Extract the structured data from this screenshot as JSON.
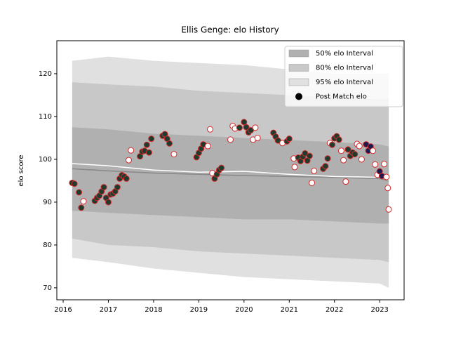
{
  "chart_data": {
    "type": "scatter",
    "title": "Ellis Genge: elo History",
    "y_label": "elo score",
    "xlim": [
      2015.86,
      2023.54
    ],
    "ylim": [
      67.2,
      127.7
    ],
    "xticks": [
      2016,
      2017,
      2018,
      2019,
      2020,
      2021,
      2022,
      2023
    ],
    "yticks": [
      70,
      80,
      90,
      100,
      110,
      120
    ],
    "legend": "upper right",
    "x": [
      2016.2,
      2017,
      2018,
      2019,
      2020,
      2021,
      2022,
      2023,
      2023.2
    ],
    "bands": [
      {
        "name": "50% elo Interval",
        "color": "#b0b0b0",
        "upper": [
          107.5,
          107,
          106,
          105.5,
          105,
          104.5,
          104,
          103.5,
          103
        ],
        "lower": [
          88,
          87.5,
          87,
          86.5,
          86,
          86,
          85.5,
          85,
          85
        ]
      },
      {
        "name": "80% elo Interval",
        "color": "#c8c8c8",
        "upper": [
          118,
          117.5,
          117,
          116,
          115.5,
          115,
          114.5,
          114,
          114
        ],
        "lower": [
          81.5,
          80,
          79.5,
          78.5,
          78,
          77.5,
          77,
          76.5,
          76
        ]
      },
      {
        "name": "95% elo Interval",
        "color": "#e0e0e0",
        "upper": [
          123,
          124,
          123,
          122.5,
          122,
          121,
          120,
          120,
          120
        ],
        "lower": [
          77,
          76,
          74.5,
          73.5,
          72.5,
          72,
          71.5,
          71,
          70
        ]
      }
    ],
    "lines": [
      {
        "color": "#888888",
        "values": [
          97.8,
          97.3,
          96.8,
          96.5,
          96.2,
          96,
          95.8,
          95.5,
          95
        ]
      },
      {
        "color": "#ffffff",
        "values": [
          99,
          98.5,
          97.5,
          97,
          97.2,
          96.5,
          96,
          95.8,
          95.2
        ]
      }
    ],
    "points": {
      "name": "Post Match elo",
      "color": "#000000",
      "edge": "#d62728",
      "x": [
        2016.2,
        2016.25,
        2016.35,
        2016.4,
        2016.45,
        2016.7,
        2016.75,
        2016.8,
        2016.85,
        2016.9,
        2016.95,
        2017.0,
        2017.05,
        2017.1,
        2017.15,
        2017.2,
        2017.25,
        2017.3,
        2017.35,
        2017.4,
        2017.45,
        2017.5,
        2017.7,
        2017.75,
        2017.8,
        2017.85,
        2017.9,
        2017.95,
        2018.2,
        2018.25,
        2018.3,
        2018.35,
        2018.45,
        2018.95,
        2019.0,
        2019.05,
        2019.1,
        2019.2,
        2019.25,
        2019.3,
        2019.35,
        2019.4,
        2019.45,
        2019.5,
        2019.7,
        2019.75,
        2019.8,
        2019.9,
        2020.0,
        2020.05,
        2020.1,
        2020.15,
        2020.2,
        2020.25,
        2020.3,
        2020.65,
        2020.7,
        2020.75,
        2020.85,
        2020.95,
        2021.0,
        2021.1,
        2021.12,
        2021.2,
        2021.25,
        2021.3,
        2021.35,
        2021.4,
        2021.45,
        2021.5,
        2021.55,
        2021.75,
        2021.8,
        2021.85,
        2021.9,
        2021.95,
        2022.0,
        2022.05,
        2022.1,
        2022.15,
        2022.2,
        2022.25,
        2022.3,
        2022.35,
        2022.4,
        2022.45,
        2022.5,
        2022.55,
        2022.6,
        2022.7,
        2022.75,
        2022.8,
        2022.85,
        2022.9,
        2022.95,
        2023.0,
        2023.05,
        2023.1,
        2023.15,
        2023.18,
        2023.2
      ],
      "values": [
        94.5,
        94.3,
        92.3,
        88.7,
        90.2,
        90.3,
        91,
        91.5,
        92.5,
        93.5,
        91,
        90,
        91.8,
        92,
        92.5,
        93.5,
        95.5,
        96.3,
        96,
        95.5,
        99.8,
        102.1,
        100.7,
        101.8,
        102,
        103.4,
        101.6,
        104.8,
        105.5,
        105.9,
        104.8,
        103.7,
        101.2,
        100.5,
        101.5,
        102.5,
        103.5,
        103.1,
        107,
        96.8,
        95.5,
        96.5,
        97.5,
        98,
        104.6,
        107.8,
        107.2,
        107.4,
        108.7,
        107.5,
        106.3,
        106.8,
        104.6,
        107.4,
        105,
        106.2,
        105.3,
        104.4,
        103.8,
        104.2,
        104.8,
        100.2,
        98.2,
        100.4,
        99.6,
        100.6,
        101.4,
        99.7,
        100.8,
        94.5,
        97.3,
        97.8,
        98.4,
        100.2,
        103.8,
        103.4,
        104.9,
        105.4,
        104.6,
        102,
        99.8,
        94.8,
        102.3,
        100.8,
        101.6,
        101.2,
        103.6,
        103.1,
        100,
        103.5,
        102,
        103,
        102,
        98.8,
        96.4,
        97.2,
        96.1,
        98.9,
        95.9,
        93.3,
        88.3
      ],
      "colors": [
        "#1f3b2d",
        "#1f3b2d",
        "#1f3b2d",
        "#1f3b2d",
        "#ffffff",
        "#1f3b2d",
        "#1f3b2d",
        "#1f3b2d",
        "#1f3b2d",
        "#1f3b2d",
        "#1f3b2d",
        "#1f3b2d",
        "#1f3b2d",
        "#1f3b2d",
        "#1f3b2d",
        "#1f3b2d",
        "#1f3b2d",
        "#1f3b2d",
        "#1f3b2d",
        "#1f3b2d",
        "#ffffff",
        "#ffffff",
        "#1f3b2d",
        "#1f3b2d",
        "#1f3b2d",
        "#1f3b2d",
        "#1f3b2d",
        "#1f3b2d",
        "#1f3b2d",
        "#1f3b2d",
        "#1f3b2d",
        "#1f3b2d",
        "#ffffff",
        "#1f3b2d",
        "#1f3b2d",
        "#1f3b2d",
        "#1f3b2d",
        "#ffffff",
        "#ffffff",
        "#ffffff",
        "#1f3b2d",
        "#1f3b2d",
        "#1f3b2d",
        "#1f3b2d",
        "#ffffff",
        "#ffffff",
        "#ffffff",
        "#1f3b2d",
        "#1f3b2d",
        "#1f3b2d",
        "#1f3b2d",
        "#1f3b2d",
        "#ffffff",
        "#ffffff",
        "#ffffff",
        "#1f3b2d",
        "#1f3b2d",
        "#1f3b2d",
        "#ffffff",
        "#1f3b2d",
        "#1f3b2d",
        "#ffffff",
        "#ffffff",
        "#1f3b2d",
        "#1f3b2d",
        "#1f3b2d",
        "#1f3b2d",
        "#1f3b2d",
        "#1f3b2d",
        "#ffffff",
        "#ffffff",
        "#1f3b2d",
        "#1f3b2d",
        "#1f3b2d",
        "#ffffff",
        "#1f3b2d",
        "#1f3b2d",
        "#1f3b2d",
        "#1f3b2d",
        "#ffffff",
        "#ffffff",
        "#ffffff",
        "#1f3b2d",
        "#1f3b2d",
        "#1f3b2d",
        "#1f3b2d",
        "#ffffff",
        "#ffffff",
        "#ffffff",
        "#1a1a4e",
        "#1a1a4e",
        "#1a1a4e",
        "#ffffff",
        "#ffffff",
        "#ffffff",
        "#1a1a4e",
        "#1a1a4e",
        "#ffffff",
        "#ffffff",
        "#ffffff",
        "#ffffff"
      ]
    }
  }
}
